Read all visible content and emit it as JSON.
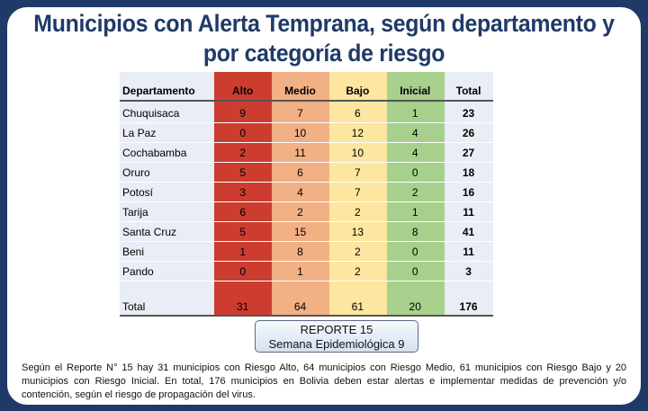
{
  "title": "Municipios con Alerta Temprana, según departamento y por categoría de riesgo",
  "colors": {
    "alto": "#cc3d30",
    "medio": "#f2b085",
    "bajo": "#fde6a0",
    "inicial": "#a8d08d",
    "frame": "#1f3a68"
  },
  "table": {
    "headers": [
      "Departamento",
      "Alto",
      "Medio",
      "Bajo",
      "Inicial",
      "Total"
    ],
    "rows": [
      [
        "Chuquisaca",
        "9",
        "7",
        "6",
        "1",
        "23"
      ],
      [
        "La Paz",
        "0",
        "10",
        "12",
        "4",
        "26"
      ],
      [
        "Cochabamba",
        "2",
        "11",
        "10",
        "4",
        "27"
      ],
      [
        "Oruro",
        "5",
        "6",
        "7",
        "0",
        "18"
      ],
      [
        "Potosí",
        "3",
        "4",
        "7",
        "2",
        "16"
      ],
      [
        "Tarija",
        "6",
        "2",
        "2",
        "1",
        "11"
      ],
      [
        "Santa Cruz",
        "5",
        "15",
        "13",
        "8",
        "41"
      ],
      [
        "Beni",
        "1",
        "8",
        "2",
        "0",
        "11"
      ],
      [
        "Pando",
        "0",
        "1",
        "2",
        "0",
        "3"
      ]
    ],
    "total": [
      "Total",
      "31",
      "64",
      "61",
      "20",
      "176"
    ]
  },
  "report": {
    "line1": "REPORTE  15",
    "line2": "Semana Epidemiológica  9"
  },
  "paragraph": "Según el Reporte N° 15 hay 31 municipios con Riesgo Alto, 64 municipios con Riesgo Medio, 61 municipios con Riesgo Bajo y 20 municipios con Riesgo Inicial. En total, 176 municipios en Bolivia deben estar alertas e implementar medidas de prevención y/o contención, según el riesgo de propagación del virus."
}
